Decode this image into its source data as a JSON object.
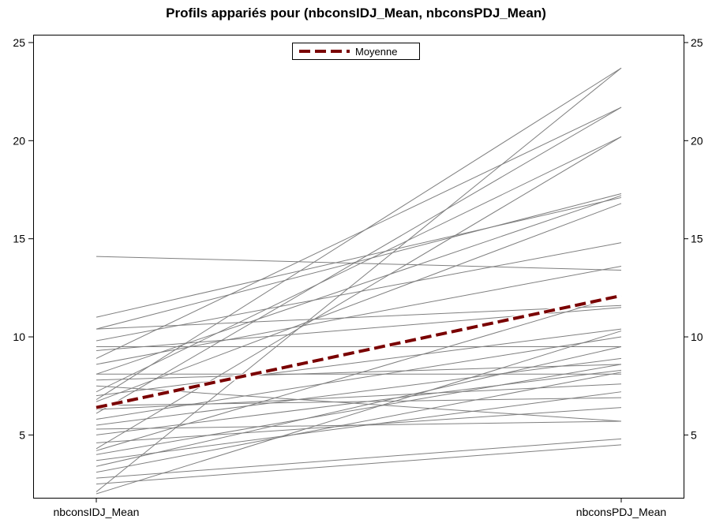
{
  "chart_data": {
    "type": "line",
    "title": "Profils appariés pour (nbconsIDJ_Mean, nbconsPDJ_Mean)",
    "categories": [
      "nbconsIDJ_Mean",
      "nbconsPDJ_Mean"
    ],
    "ylim": [
      1.8,
      25.4
    ],
    "yticks": [
      5,
      10,
      15,
      20,
      25
    ],
    "secondary_y_axis": true,
    "grid": false,
    "legend": {
      "position": "top-center",
      "label": "Moyenne"
    },
    "mean_series": {
      "name": "Moyenne",
      "color": "#7a0000",
      "values": [
        6.4,
        12.1
      ]
    },
    "line_color": "#7f7f7f",
    "profiles": [
      [
        14.1,
        13.4
      ],
      [
        11.0,
        17.1
      ],
      [
        10.4,
        17.3
      ],
      [
        10.4,
        11.6
      ],
      [
        9.8,
        14.8
      ],
      [
        9.5,
        9.5
      ],
      [
        9.3,
        11.5
      ],
      [
        8.9,
        21.7
      ],
      [
        8.6,
        13.6
      ],
      [
        8.1,
        8.1
      ],
      [
        8.1,
        17.2
      ],
      [
        7.8,
        8.6
      ],
      [
        7.5,
        5.7
      ],
      [
        7.2,
        20.2
      ],
      [
        7.0,
        10.4
      ],
      [
        6.8,
        23.7
      ],
      [
        6.7,
        16.8
      ],
      [
        6.5,
        6.9
      ],
      [
        6.3,
        7.6
      ],
      [
        6.1,
        21.7
      ],
      [
        5.8,
        10.0
      ],
      [
        5.5,
        8.9
      ],
      [
        5.3,
        5.7
      ],
      [
        5.0,
        8.3
      ],
      [
        4.6,
        6.4
      ],
      [
        4.3,
        20.2
      ],
      [
        4.2,
        12.1
      ],
      [
        4.0,
        8.6
      ],
      [
        3.7,
        7.2
      ],
      [
        3.4,
        9.5
      ],
      [
        3.1,
        8.2
      ],
      [
        2.8,
        4.8
      ],
      [
        2.5,
        4.5
      ],
      [
        2.1,
        23.7
      ],
      [
        2.0,
        10.3
      ]
    ]
  }
}
